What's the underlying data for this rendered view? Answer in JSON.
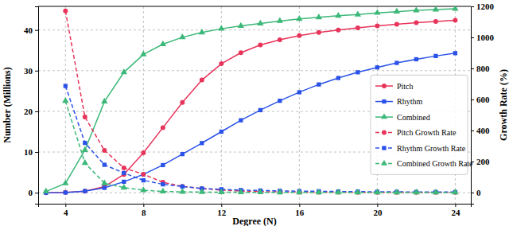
{
  "chart_data": {
    "type": "line",
    "xlabel": "Degree (N)",
    "ylabel": "Number (Millions)",
    "y2label": "Growth Rate (%)",
    "x": [
      3,
      4,
      5,
      6,
      7,
      8,
      9,
      10,
      11,
      12,
      13,
      14,
      15,
      16,
      17,
      18,
      19,
      20,
      21,
      22,
      23,
      24
    ],
    "xlim": [
      2.6,
      24.8
    ],
    "xticks": [
      4,
      8,
      12,
      16,
      20,
      24
    ],
    "ylim": [
      -2.7,
      45.8
    ],
    "yticks": [
      0,
      10,
      20,
      30,
      40
    ],
    "y2lim": [
      -72,
      1200
    ],
    "y2ticks": [
      0,
      200,
      400,
      600,
      800,
      1000,
      1200
    ],
    "grid": true,
    "legend": "right",
    "series": [
      {
        "name": "Pitch",
        "color": "#e8345a",
        "marker": "circle",
        "line_style": "solid",
        "values": [
          0,
          0.1,
          0.4,
          1.5,
          4.5,
          9.8,
          16,
          22.2,
          27.7,
          31.7,
          34.4,
          36.3,
          37.6,
          38.6,
          39.4,
          40.0,
          40.5,
          41.0,
          41.4,
          41.8,
          42.1,
          42.4
        ]
      },
      {
        "name": "Rhythm",
        "color": "#2a52e8",
        "marker": "square",
        "line_style": "solid",
        "values": [
          0,
          0.05,
          0.4,
          1.2,
          2.7,
          4.5,
          6.8,
          9.5,
          12.2,
          15,
          17.8,
          20.3,
          22.6,
          24.7,
          26.6,
          28.2,
          29.6,
          30.8,
          31.9,
          32.8,
          33.6,
          34.3
        ]
      },
      {
        "name": "Combined",
        "color": "#3cb878",
        "marker": "triangle",
        "line_style": "solid",
        "values": [
          0.3,
          2.3,
          10.5,
          22.4,
          29.6,
          34,
          36.5,
          38.2,
          39.4,
          40.3,
          41.0,
          41.6,
          42.2,
          42.7,
          43.1,
          43.5,
          43.8,
          44.2,
          44.5,
          44.8,
          45.0,
          45.2
        ]
      },
      {
        "name": "Pitch Growth Rate",
        "color": "#e8345a",
        "marker": "circle",
        "line_style": "dashed",
        "axis": "y2",
        "values": [
          null,
          1170,
          487,
          272,
          159,
          118,
          66,
          40,
          26,
          16,
          10,
          6,
          4,
          3,
          2.5,
          2,
          1.6,
          1.3,
          1.1,
          0.9,
          0.8,
          0.7
        ]
      },
      {
        "name": "Rhythm Growth Rate",
        "color": "#2a52e8",
        "marker": "square",
        "line_style": "dashed",
        "axis": "y2",
        "values": [
          null,
          687,
          320,
          179,
          126,
          79,
          53,
          39,
          26,
          21,
          16,
          13,
          11,
          9,
          8,
          7,
          6,
          5,
          4.5,
          4,
          3.5,
          3
        ]
      },
      {
        "name": "Combined Growth Rate",
        "color": "#3cb878",
        "marker": "triangle",
        "line_style": "dashed",
        "axis": "y2",
        "values": [
          null,
          591,
          190,
          60,
          32,
          15,
          7,
          4.7,
          3,
          2.3,
          1.7,
          1.4,
          1.2,
          1,
          0.9,
          0.8,
          0.7,
          0.6,
          0.5,
          0.5,
          0.4,
          0.4
        ]
      }
    ]
  }
}
